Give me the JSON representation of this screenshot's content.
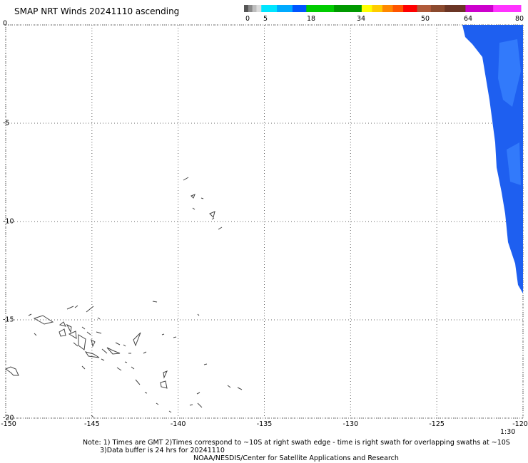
{
  "title": "SMAP NRT Winds 20241110 ascending",
  "colorbar": {
    "labels": [
      "0",
      "5",
      "18",
      "34",
      "50",
      "64",
      "80"
    ],
    "segments": [
      {
        "from": 0,
        "to": 1.2,
        "color": "#555555"
      },
      {
        "from": 1.2,
        "to": 2.4,
        "color": "#8a8a8a"
      },
      {
        "from": 2.4,
        "to": 3.6,
        "color": "#bdbdbd"
      },
      {
        "from": 3.6,
        "to": 5,
        "color": "#dcdcdc"
      },
      {
        "from": 5,
        "to": 9.5,
        "color": "#00e5ff"
      },
      {
        "from": 9.5,
        "to": 14,
        "color": "#00aaff"
      },
      {
        "from": 14,
        "to": 18,
        "color": "#0055ff"
      },
      {
        "from": 18,
        "to": 26,
        "color": "#00cc00"
      },
      {
        "from": 26,
        "to": 34,
        "color": "#009900"
      },
      {
        "from": 34,
        "to": 37,
        "color": "#ffff00"
      },
      {
        "from": 37,
        "to": 40,
        "color": "#ffcc00"
      },
      {
        "from": 40,
        "to": 43,
        "color": "#ff8800"
      },
      {
        "from": 43,
        "to": 46,
        "color": "#ff5500"
      },
      {
        "from": 46,
        "to": 50,
        "color": "#ff0000"
      },
      {
        "from": 50,
        "to": 54,
        "color": "#b05a3a"
      },
      {
        "from": 54,
        "to": 58,
        "color": "#8b4a2e"
      },
      {
        "from": 58,
        "to": 64,
        "color": "#6a3525"
      },
      {
        "from": 64,
        "to": 72,
        "color": "#cc00cc"
      },
      {
        "from": 72,
        "to": 80,
        "color": "#ff33ff"
      }
    ]
  },
  "map": {
    "lon_range": [
      -150,
      -120
    ],
    "lat_range": [
      -20,
      0
    ],
    "x_ticks": [
      "-150",
      "-145",
      "-140",
      "-135",
      "-130",
      "-125",
      "-120"
    ],
    "y_ticks": [
      "0",
      "-5",
      "-10",
      "-15",
      "-20"
    ],
    "swath_color": "#1e5ff0",
    "swath_highlight": "#3a86ff"
  },
  "time_label": "1:30",
  "notes": [
    "Note: 1) Times are GMT 2)Times correspond to ~10S at right swath edge - time is right swath for overlapping swaths at ~10S",
    "3)Data buffer is 24 hrs for 20241110",
    "NOAA/NESDIS/Center for Satellite Applications and Research"
  ]
}
